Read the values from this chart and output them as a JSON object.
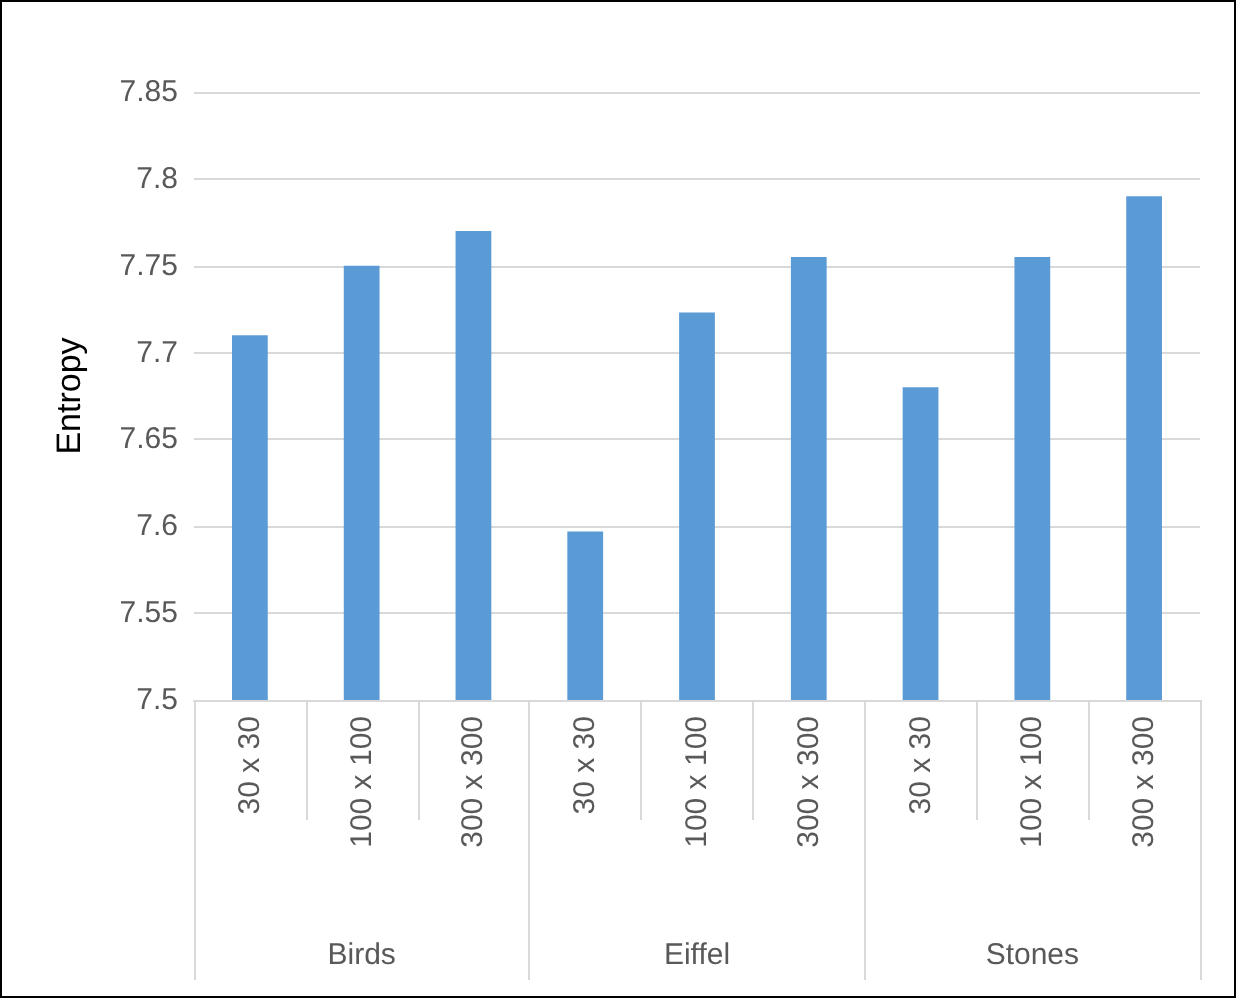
{
  "chart_data": {
    "type": "bar",
    "ylabel": "Entropy",
    "categories": [
      "30 x 30",
      "100 x 100",
      "300 x 300",
      "30 x 30",
      "100 x 100",
      "300 x 300",
      "30 x 30",
      "100 x 100",
      "300 x 300"
    ],
    "annotations": [
      "Birds",
      "Eiffel",
      "Stones"
    ],
    "values": [
      7.71,
      7.75,
      7.77,
      7.597,
      7.723,
      7.755,
      7.68,
      7.755,
      7.79
    ],
    "color": "#5b9bd5",
    "ylim": [
      7.5,
      7.85
    ],
    "yticks": [
      7.5,
      7.55,
      7.6,
      7.65,
      7.7,
      7.75,
      7.8,
      7.85
    ],
    "grid": "y"
  }
}
